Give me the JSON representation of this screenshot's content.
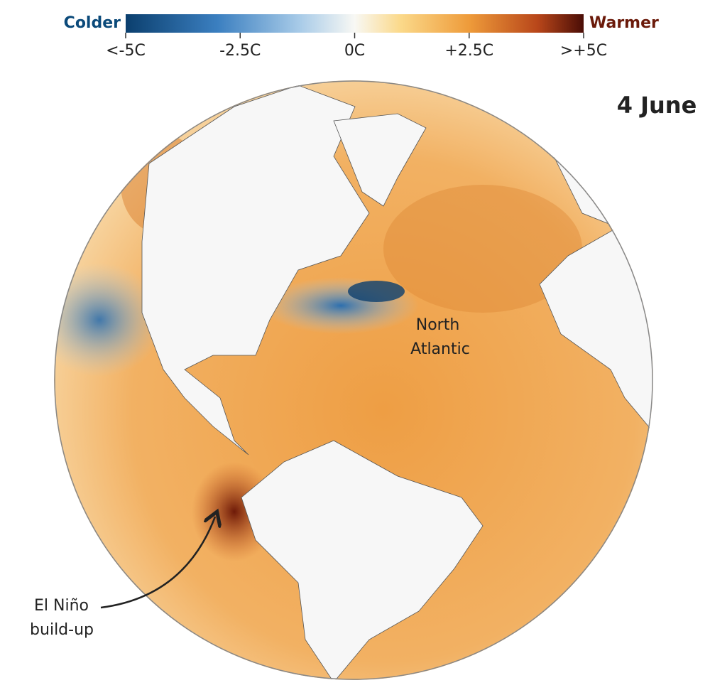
{
  "legend": {
    "low_label": "Colder",
    "high_label": "Warmer",
    "range": [
      -5,
      5
    ],
    "ticks": [
      {
        "value": -5,
        "label": "<-5C"
      },
      {
        "value": -2.5,
        "label": "-2.5C"
      },
      {
        "value": 0,
        "label": "0C"
      },
      {
        "value": 2.5,
        "label": "+2.5C"
      },
      {
        "value": 5,
        "label": ">+5C"
      }
    ]
  },
  "date": "4 June",
  "annotations": [
    {
      "lines": [
        "North",
        "Atlantic"
      ]
    },
    {
      "lines": [
        "El Niño",
        "build-up"
      ]
    }
  ]
}
